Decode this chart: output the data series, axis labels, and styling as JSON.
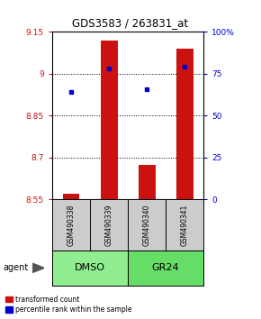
{
  "title": "GDS3583 / 263831_at",
  "samples": [
    "GSM490338",
    "GSM490339",
    "GSM490340",
    "GSM490341"
  ],
  "bar_values": [
    8.57,
    9.12,
    8.675,
    9.09
  ],
  "dot_values": [
    8.935,
    9.02,
    8.945,
    9.025
  ],
  "ylim_left": [
    8.55,
    9.15
  ],
  "ylim_right": [
    0,
    100
  ],
  "yticks_left": [
    8.55,
    8.7,
    8.85,
    9.0,
    9.15
  ],
  "yticks_right": [
    0,
    25,
    50,
    75,
    100
  ],
  "ytick_labels_left": [
    "8.55",
    "8.7",
    "8.85",
    "9",
    "9.15"
  ],
  "ytick_labels_right": [
    "0",
    "25",
    "50",
    "75",
    "100%"
  ],
  "hline_values": [
    9.0,
    8.85,
    8.7
  ],
  "groups": [
    {
      "label": "DMSO",
      "color": "#90ee90"
    },
    {
      "label": "GR24",
      "color": "#66dd66"
    }
  ],
  "bar_color": "#cc1111",
  "dot_color": "#0000cc",
  "bar_bottom": 8.55,
  "bar_width": 0.45,
  "plot_bg": "#ffffff",
  "legend_red_label": "transformed count",
  "legend_blue_label": "percentile rank within the sample",
  "agent_label": "agent",
  "left_tick_color": "#cc1111",
  "right_tick_color": "#0000cc",
  "sample_box_color": "#cccccc",
  "arrow_color": "#555555"
}
